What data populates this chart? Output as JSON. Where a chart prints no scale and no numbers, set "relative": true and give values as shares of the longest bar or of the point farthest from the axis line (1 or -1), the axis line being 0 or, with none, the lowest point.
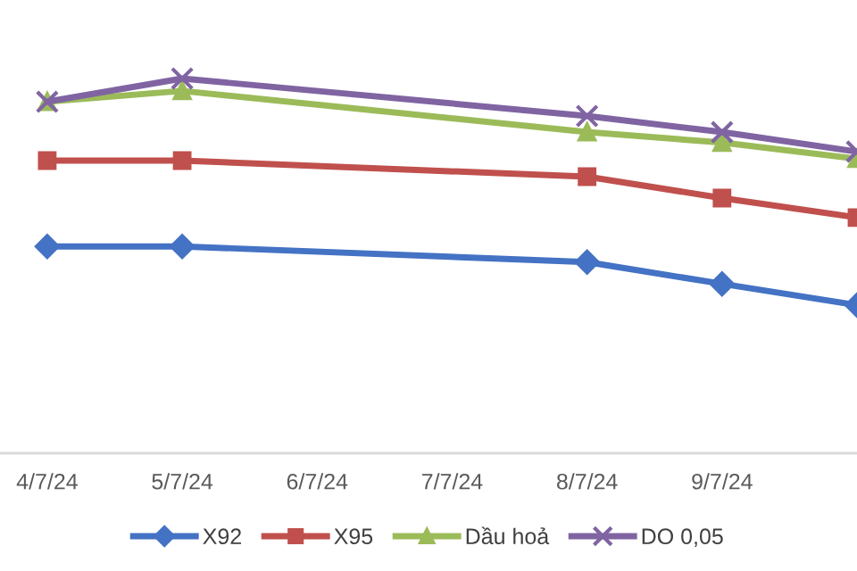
{
  "chart_data": {
    "type": "line",
    "relative": true,
    "categories": [
      "4/7/24",
      "5/7/24",
      "6/7/24",
      "7/7/24",
      "8/7/24",
      "9/7/24",
      null
    ],
    "series": [
      {
        "name": "X92",
        "color": "#4472c4",
        "marker": "diamond",
        "values": [
          0.552,
          0.552,
          null,
          null,
          0.51,
          0.452,
          0.395
        ]
      },
      {
        "name": "X95",
        "color": "#c0504d",
        "marker": "square",
        "values": [
          0.781,
          0.781,
          null,
          null,
          0.738,
          0.681,
          0.629
        ]
      },
      {
        "name": "Dầu hoả",
        "color": "#9bbb59",
        "marker": "triangle",
        "values": [
          0.938,
          0.967,
          null,
          null,
          0.857,
          0.829,
          0.786
        ]
      },
      {
        "name": "DO 0,05",
        "color": "#8064a2",
        "marker": "cross",
        "values": [
          0.938,
          1.0,
          null,
          null,
          0.9,
          0.857,
          0.805
        ]
      }
    ],
    "legend": "bottom",
    "grid": false,
    "line_style": "solid"
  }
}
